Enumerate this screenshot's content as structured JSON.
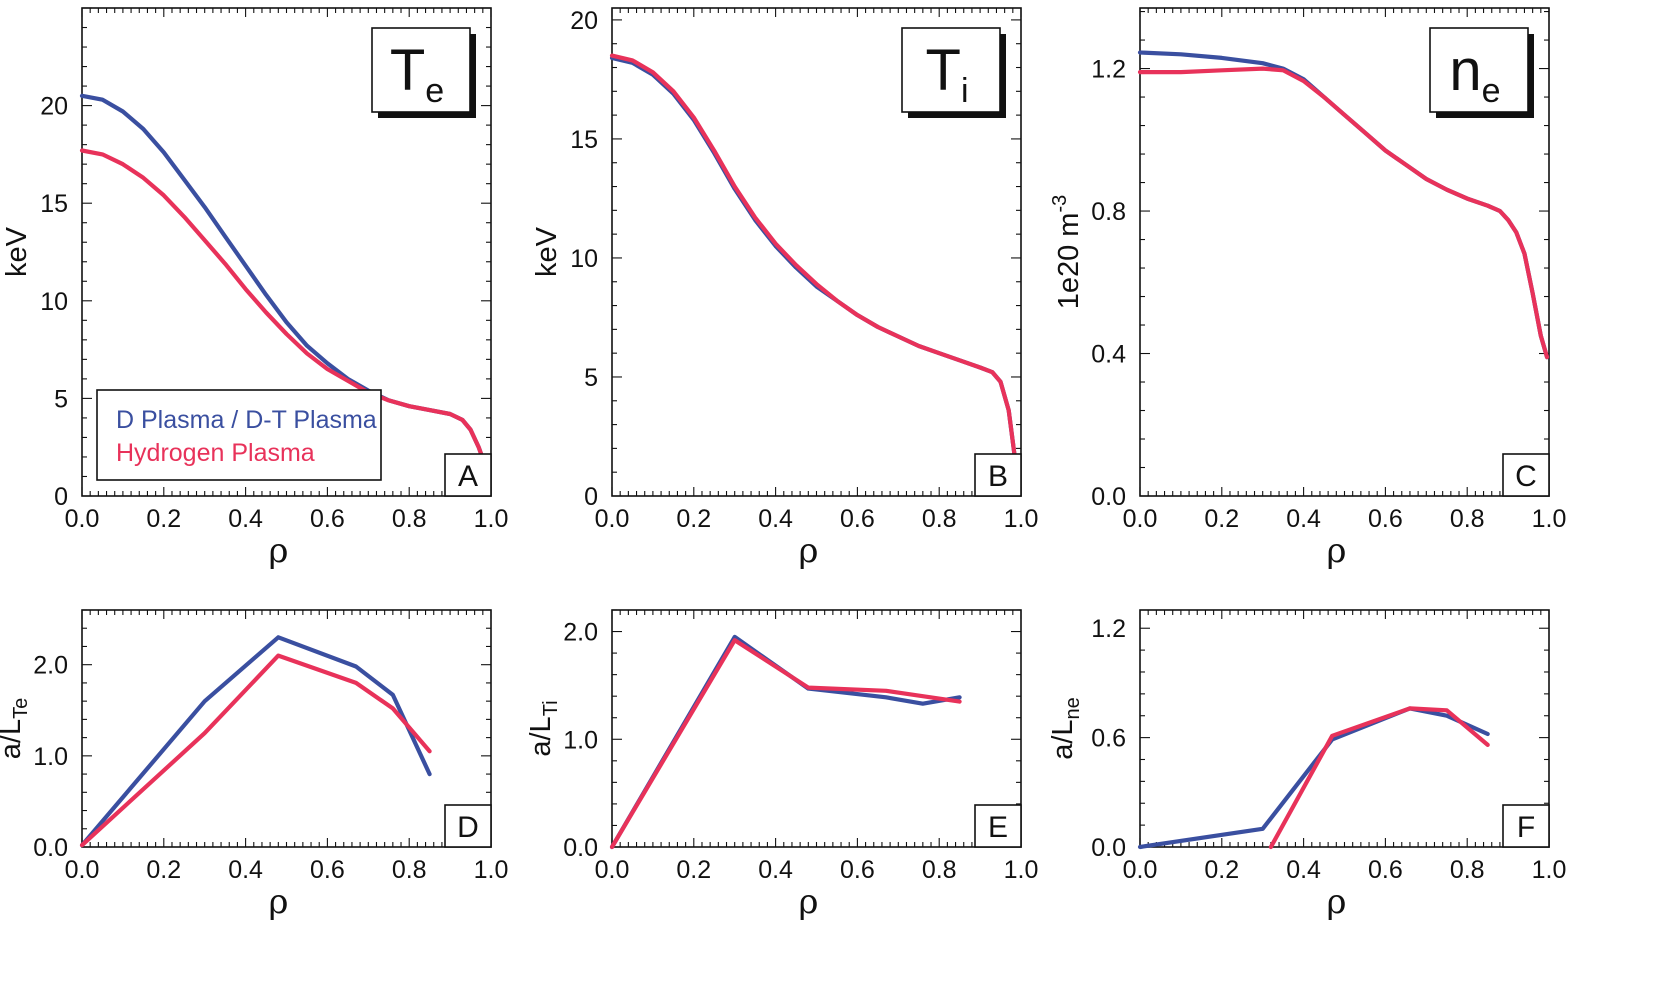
{
  "colors": {
    "dt": "#3a4fa0",
    "h": "#e8325a",
    "axis": "#111111"
  },
  "legend": {
    "dt": "D Plasma / D-T Plasma",
    "h": "Hydrogen Plasma"
  },
  "chart_data": [
    {
      "type": "line",
      "panel": "A",
      "title": {
        "main": "T",
        "sub": "e"
      },
      "ylabel": {
        "text": "keV"
      },
      "xlabel": "ρ",
      "xlim": [
        0,
        1
      ],
      "ylim": [
        0,
        25
      ],
      "xticks": [
        "0.0",
        "0.2",
        "0.4",
        "0.6",
        "0.8",
        "1.0"
      ],
      "xtick_values": [
        0,
        0.2,
        0.4,
        0.6,
        0.8,
        1.0
      ],
      "yticks": [
        "0",
        "5",
        "10",
        "15",
        "20"
      ],
      "ytick_values": [
        0,
        5,
        10,
        15,
        20
      ],
      "legend": true,
      "series": [
        {
          "key": "dt",
          "points": [
            [
              0,
              20.5
            ],
            [
              0.05,
              20.3
            ],
            [
              0.1,
              19.7
            ],
            [
              0.15,
              18.8
            ],
            [
              0.2,
              17.6
            ],
            [
              0.25,
              16.2
            ],
            [
              0.3,
              14.8
            ],
            [
              0.35,
              13.3
            ],
            [
              0.4,
              11.8
            ],
            [
              0.45,
              10.3
            ],
            [
              0.5,
              8.9
            ],
            [
              0.55,
              7.7
            ],
            [
              0.6,
              6.8
            ],
            [
              0.65,
              6.0
            ],
            [
              0.7,
              5.4
            ],
            [
              0.75,
              4.9
            ],
            [
              0.8,
              4.6
            ],
            [
              0.85,
              4.4
            ],
            [
              0.9,
              4.2
            ],
            [
              0.93,
              3.9
            ],
            [
              0.95,
              3.4
            ],
            [
              0.97,
              2.5
            ],
            [
              0.985,
              1.6
            ]
          ]
        },
        {
          "key": "h",
          "points": [
            [
              0,
              17.7
            ],
            [
              0.05,
              17.5
            ],
            [
              0.1,
              17.0
            ],
            [
              0.15,
              16.3
            ],
            [
              0.2,
              15.4
            ],
            [
              0.25,
              14.3
            ],
            [
              0.3,
              13.1
            ],
            [
              0.35,
              11.9
            ],
            [
              0.4,
              10.6
            ],
            [
              0.45,
              9.4
            ],
            [
              0.5,
              8.3
            ],
            [
              0.55,
              7.3
            ],
            [
              0.6,
              6.5
            ],
            [
              0.65,
              5.9
            ],
            [
              0.7,
              5.3
            ],
            [
              0.75,
              4.9
            ],
            [
              0.8,
              4.6
            ],
            [
              0.85,
              4.4
            ],
            [
              0.9,
              4.2
            ],
            [
              0.93,
              3.9
            ],
            [
              0.95,
              3.4
            ],
            [
              0.97,
              2.5
            ],
            [
              0.985,
              1.6
            ]
          ]
        }
      ]
    },
    {
      "type": "line",
      "panel": "B",
      "title": {
        "main": "T",
        "sub": "i"
      },
      "ylabel": {
        "text": "keV"
      },
      "xlabel": "ρ",
      "xlim": [
        0,
        1
      ],
      "ylim": [
        0,
        20.5
      ],
      "xticks": [
        "0.0",
        "0.2",
        "0.4",
        "0.6",
        "0.8",
        "1.0"
      ],
      "xtick_values": [
        0,
        0.2,
        0.4,
        0.6,
        0.8,
        1.0
      ],
      "yticks": [
        "0",
        "5",
        "10",
        "15",
        "20"
      ],
      "ytick_values": [
        0,
        5,
        10,
        15,
        20
      ],
      "legend": false,
      "series": [
        {
          "key": "dt",
          "points": [
            [
              0,
              18.4
            ],
            [
              0.05,
              18.2
            ],
            [
              0.1,
              17.7
            ],
            [
              0.15,
              16.9
            ],
            [
              0.2,
              15.8
            ],
            [
              0.25,
              14.4
            ],
            [
              0.3,
              12.9
            ],
            [
              0.35,
              11.6
            ],
            [
              0.4,
              10.5
            ],
            [
              0.45,
              9.6
            ],
            [
              0.5,
              8.8
            ],
            [
              0.55,
              8.2
            ],
            [
              0.6,
              7.6
            ],
            [
              0.65,
              7.1
            ],
            [
              0.7,
              6.7
            ],
            [
              0.75,
              6.3
            ],
            [
              0.8,
              6.0
            ],
            [
              0.85,
              5.7
            ],
            [
              0.9,
              5.4
            ],
            [
              0.93,
              5.2
            ],
            [
              0.95,
              4.8
            ],
            [
              0.97,
              3.6
            ],
            [
              0.985,
              1.6
            ]
          ]
        },
        {
          "key": "h",
          "points": [
            [
              0,
              18.5
            ],
            [
              0.05,
              18.3
            ],
            [
              0.1,
              17.8
            ],
            [
              0.15,
              17.0
            ],
            [
              0.2,
              15.9
            ],
            [
              0.25,
              14.5
            ],
            [
              0.3,
              13.0
            ],
            [
              0.35,
              11.7
            ],
            [
              0.4,
              10.6
            ],
            [
              0.45,
              9.7
            ],
            [
              0.5,
              8.9
            ],
            [
              0.55,
              8.2
            ],
            [
              0.6,
              7.6
            ],
            [
              0.65,
              7.1
            ],
            [
              0.7,
              6.7
            ],
            [
              0.75,
              6.3
            ],
            [
              0.8,
              6.0
            ],
            [
              0.85,
              5.7
            ],
            [
              0.9,
              5.4
            ],
            [
              0.93,
              5.2
            ],
            [
              0.95,
              4.8
            ],
            [
              0.97,
              3.6
            ],
            [
              0.985,
              1.6
            ]
          ]
        }
      ]
    },
    {
      "type": "line",
      "panel": "C",
      "title": {
        "main": "n",
        "sub": "e"
      },
      "ylabel": {
        "text": "1e20 m",
        "sup": "-3"
      },
      "xlabel": "ρ",
      "xlim": [
        0,
        1
      ],
      "ylim": [
        0,
        1.37
      ],
      "xticks": [
        "0.0",
        "0.2",
        "0.4",
        "0.6",
        "0.8",
        "1.0"
      ],
      "xtick_values": [
        0,
        0.2,
        0.4,
        0.6,
        0.8,
        1.0
      ],
      "yticks": [
        "0.0",
        "0.4",
        "0.8",
        "1.2"
      ],
      "ytick_values": [
        0,
        0.4,
        0.8,
        1.2
      ],
      "legend": false,
      "series": [
        {
          "key": "dt",
          "points": [
            [
              0,
              1.245
            ],
            [
              0.1,
              1.24
            ],
            [
              0.2,
              1.23
            ],
            [
              0.3,
              1.215
            ],
            [
              0.35,
              1.2
            ],
            [
              0.4,
              1.17
            ],
            [
              0.45,
              1.12
            ],
            [
              0.5,
              1.07
            ],
            [
              0.55,
              1.02
            ],
            [
              0.6,
              0.97
            ],
            [
              0.65,
              0.93
            ],
            [
              0.7,
              0.89
            ],
            [
              0.75,
              0.86
            ],
            [
              0.8,
              0.835
            ],
            [
              0.85,
              0.815
            ],
            [
              0.88,
              0.8
            ],
            [
              0.9,
              0.775
            ],
            [
              0.92,
              0.74
            ],
            [
              0.94,
              0.68
            ],
            [
              0.96,
              0.57
            ],
            [
              0.98,
              0.45
            ],
            [
              0.995,
              0.39
            ]
          ]
        },
        {
          "key": "h",
          "points": [
            [
              0,
              1.19
            ],
            [
              0.1,
              1.19
            ],
            [
              0.2,
              1.195
            ],
            [
              0.3,
              1.2
            ],
            [
              0.35,
              1.195
            ],
            [
              0.4,
              1.165
            ],
            [
              0.45,
              1.12
            ],
            [
              0.5,
              1.07
            ],
            [
              0.55,
              1.02
            ],
            [
              0.6,
              0.97
            ],
            [
              0.65,
              0.93
            ],
            [
              0.7,
              0.89
            ],
            [
              0.75,
              0.86
            ],
            [
              0.8,
              0.835
            ],
            [
              0.85,
              0.815
            ],
            [
              0.88,
              0.8
            ],
            [
              0.9,
              0.775
            ],
            [
              0.92,
              0.74
            ],
            [
              0.94,
              0.68
            ],
            [
              0.96,
              0.57
            ],
            [
              0.98,
              0.45
            ],
            [
              0.995,
              0.39
            ]
          ]
        }
      ]
    },
    {
      "type": "line",
      "panel": "D",
      "title": null,
      "ylabel": {
        "text": "a/L",
        "sub": "Te"
      },
      "xlabel": "ρ",
      "xlim": [
        0,
        1
      ],
      "ylim": [
        0,
        2.6
      ],
      "xticks": [
        "0.0",
        "0.2",
        "0.4",
        "0.6",
        "0.8",
        "1.0"
      ],
      "xtick_values": [
        0,
        0.2,
        0.4,
        0.6,
        0.8,
        1.0
      ],
      "yticks": [
        "0.0",
        "1.0",
        "2.0"
      ],
      "ytick_values": [
        0,
        1,
        2
      ],
      "legend": false,
      "series": [
        {
          "key": "dt",
          "points": [
            [
              0,
              0.02
            ],
            [
              0.3,
              1.6
            ],
            [
              0.48,
              2.3
            ],
            [
              0.67,
              1.98
            ],
            [
              0.76,
              1.67
            ],
            [
              0.85,
              0.8
            ]
          ]
        },
        {
          "key": "h",
          "points": [
            [
              0,
              0.02
            ],
            [
              0.3,
              1.25
            ],
            [
              0.48,
              2.1
            ],
            [
              0.67,
              1.8
            ],
            [
              0.76,
              1.52
            ],
            [
              0.85,
              1.05
            ]
          ]
        }
      ]
    },
    {
      "type": "line",
      "panel": "E",
      "title": null,
      "ylabel": {
        "text": "a/L",
        "sub": "Ti"
      },
      "xlabel": "ρ",
      "xlim": [
        0,
        1
      ],
      "ylim": [
        0,
        2.2
      ],
      "xticks": [
        "0.0",
        "0.2",
        "0.4",
        "0.6",
        "0.8",
        "1.0"
      ],
      "xtick_values": [
        0,
        0.2,
        0.4,
        0.6,
        0.8,
        1.0
      ],
      "yticks": [
        "0.0",
        "1.0",
        "2.0"
      ],
      "ytick_values": [
        0,
        1,
        2
      ],
      "legend": false,
      "series": [
        {
          "key": "dt",
          "points": [
            [
              0,
              0.0
            ],
            [
              0.3,
              1.95
            ],
            [
              0.48,
              1.47
            ],
            [
              0.67,
              1.39
            ],
            [
              0.76,
              1.33
            ],
            [
              0.85,
              1.39
            ]
          ]
        },
        {
          "key": "h",
          "points": [
            [
              0,
              0.0
            ],
            [
              0.3,
              1.92
            ],
            [
              0.48,
              1.48
            ],
            [
              0.67,
              1.45
            ],
            [
              0.76,
              1.4
            ],
            [
              0.85,
              1.35
            ]
          ]
        }
      ]
    },
    {
      "type": "line",
      "panel": "F",
      "title": null,
      "ylabel": {
        "text": "a/L",
        "sub": "ne"
      },
      "xlabel": "ρ",
      "xlim": [
        0,
        1
      ],
      "ylim": [
        0,
        1.3
      ],
      "xticks": [
        "0.0",
        "0.2",
        "0.4",
        "0.6",
        "0.8",
        "1.0"
      ],
      "xtick_values": [
        0,
        0.2,
        0.4,
        0.6,
        0.8,
        1.0
      ],
      "yticks": [
        "0.0",
        "0.6",
        "1.2"
      ],
      "ytick_values": [
        0,
        0.6,
        1.2
      ],
      "legend": false,
      "series": [
        {
          "key": "dt",
          "points": [
            [
              0,
              0.0
            ],
            [
              0.3,
              0.1
            ],
            [
              0.47,
              0.59
            ],
            [
              0.66,
              0.76
            ],
            [
              0.75,
              0.72
            ],
            [
              0.85,
              0.62
            ]
          ]
        },
        {
          "key": "h",
          "points": [
            [
              0.32,
              0.0
            ],
            [
              0.47,
              0.61
            ],
            [
              0.66,
              0.76
            ],
            [
              0.75,
              0.75
            ],
            [
              0.85,
              0.56
            ]
          ]
        }
      ]
    }
  ]
}
